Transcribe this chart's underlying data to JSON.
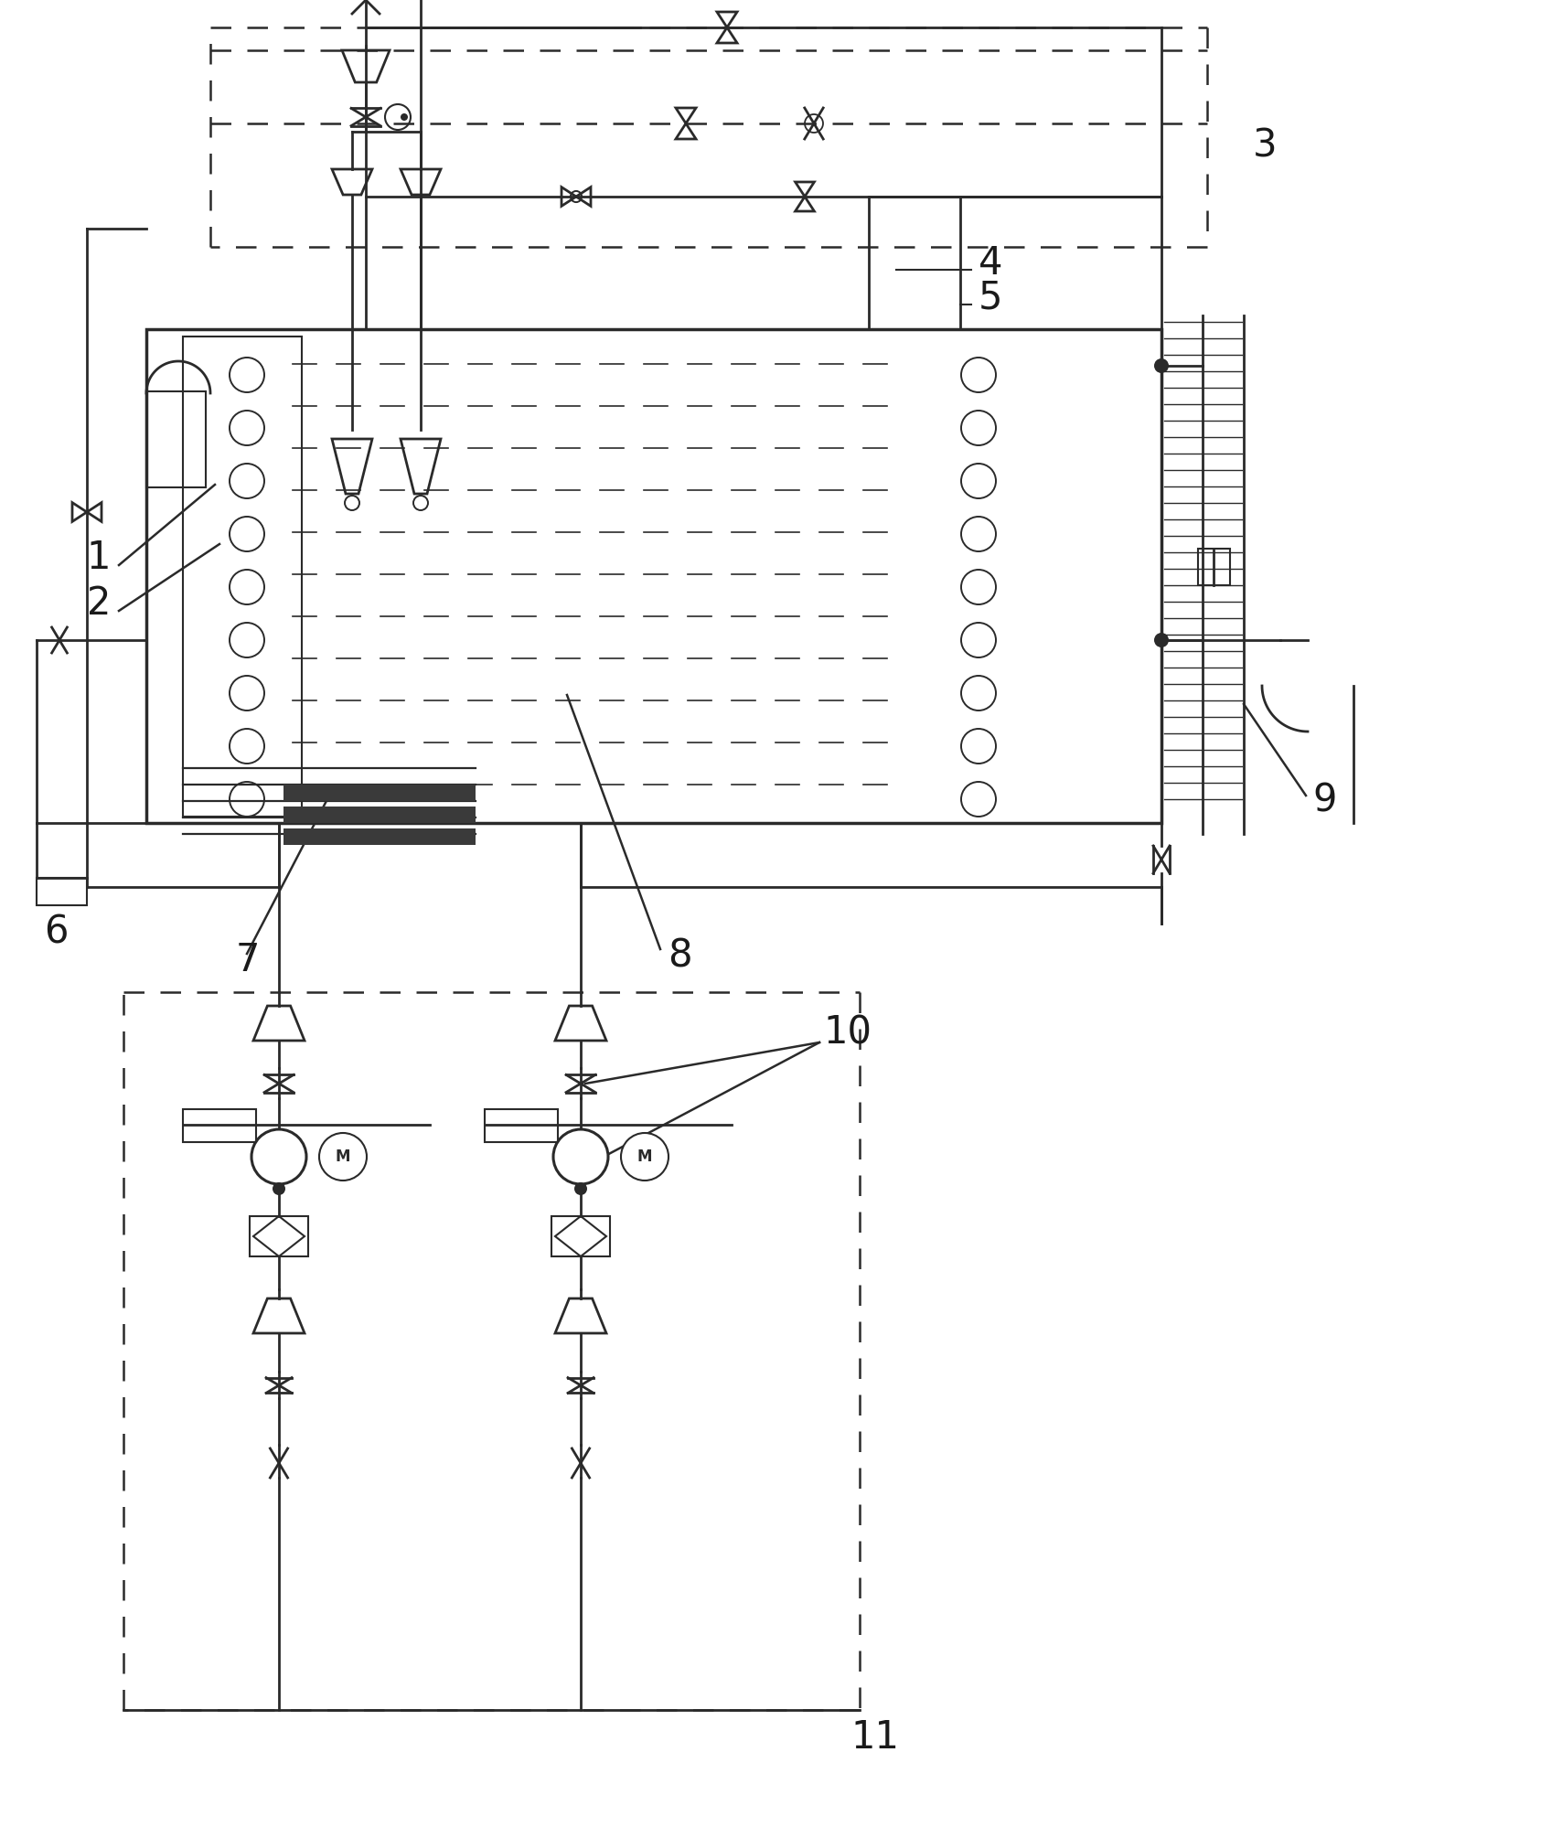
{
  "bg_color": "#ffffff",
  "line_color": "#2a2a2a",
  "line_width": 2.0,
  "fig_width": 16.96,
  "fig_height": 19.98,
  "dpi": 100
}
